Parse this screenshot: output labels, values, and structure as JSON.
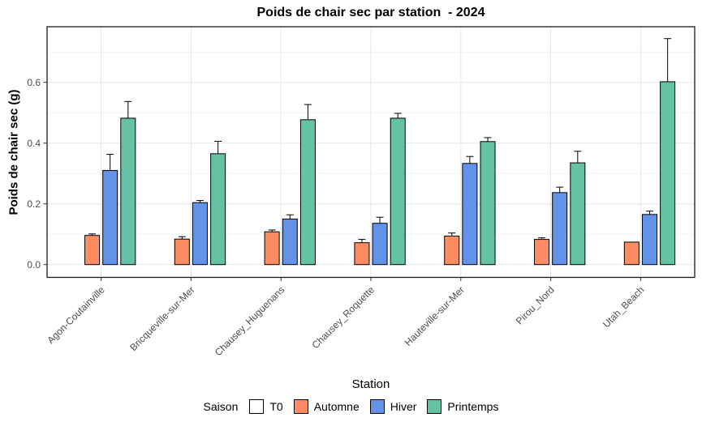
{
  "chart_data": {
    "type": "bar",
    "title": "Poids de chair sec par station  - 2024",
    "xlabel": "Station",
    "ylabel": "Poids de chair sec (g)",
    "legend_title": "Saison",
    "legend_position": "bottom",
    "grid": true,
    "ylim": [
      -0.04,
      0.78
    ],
    "yticks": [
      0.0,
      0.2,
      0.4,
      0.6
    ],
    "ytick_labels": [
      "0.0",
      "0.2",
      "0.4",
      "0.6"
    ],
    "categories": [
      "Agon-Coutainville",
      "Bricqueville-sur-Mer",
      "Chausey_Huguenans",
      "Chausey_Roquette",
      "Hauteville-sur-Mer",
      "Pirou_Nord",
      "Utah_Beach"
    ],
    "series": [
      {
        "name": "T0",
        "color": "#FFFFFF",
        "values": [
          0,
          0,
          0,
          0,
          0,
          0,
          0
        ],
        "error_upper": [
          null,
          null,
          null,
          null,
          null,
          null,
          null
        ]
      },
      {
        "name": "Automne",
        "color": "#FC8D62",
        "values": [
          0.096,
          0.084,
          0.108,
          0.072,
          0.094,
          0.083,
          0.074
        ],
        "error_upper": [
          0.101,
          0.092,
          0.114,
          0.083,
          0.104,
          0.088,
          null
        ]
      },
      {
        "name": "Hiver",
        "color": "#6393E8",
        "values": [
          0.31,
          0.204,
          0.15,
          0.136,
          0.333,
          0.237,
          0.165
        ],
        "error_upper": [
          0.363,
          0.211,
          0.164,
          0.156,
          0.356,
          0.255,
          0.176
        ]
      },
      {
        "name": "Printemps",
        "color": "#66C2A5",
        "values": [
          0.482,
          0.365,
          0.477,
          0.482,
          0.405,
          0.335,
          0.602
        ],
        "error_upper": [
          0.537,
          0.406,
          0.527,
          0.498,
          0.418,
          0.373,
          0.744
        ]
      }
    ],
    "bar_outline_color": "#000000",
    "grid_major_color": "#E6E6E6",
    "grid_minor_color": "#F2F2F2",
    "panel_border_color": "#1a1a1a",
    "tick_label_color": "#4D4D4D"
  }
}
